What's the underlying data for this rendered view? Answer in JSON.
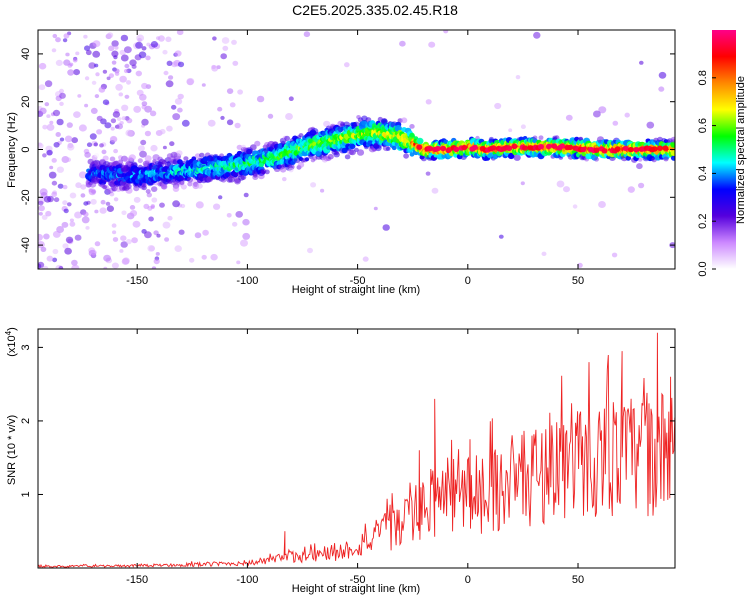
{
  "title": "C2E5.2025.335.02.45.R18",
  "chart_data": [
    {
      "type": "heatmap",
      "xlabel": "Height of straight line (km)",
      "ylabel": "Frequency (Hz)",
      "xlim": [
        -195,
        94
      ],
      "ylim": [
        -50,
        50
      ],
      "xticks": [
        -150,
        -100,
        -50,
        0,
        50
      ],
      "yticks": [
        -40,
        -20,
        0,
        20,
        40
      ],
      "colorbar": {
        "label": "Normalized spectral amplitude",
        "range": [
          0.0,
          1.0
        ],
        "ticks": [
          0.0,
          0.2,
          0.4,
          0.6,
          0.8
        ],
        "colors": [
          "#ffffff",
          "#cc88ff",
          "#5500dd",
          "#0000ff",
          "#00ffff",
          "#00ff00",
          "#ffff00",
          "#ff8800",
          "#ff0000",
          "#ff0088"
        ]
      },
      "ridge": {
        "x": [
          -170,
          -150,
          -130,
          -110,
          -100,
          -90,
          -80,
          -70,
          -60,
          -50,
          -45,
          -40,
          -30,
          -25,
          -20,
          -10,
          0,
          10,
          20,
          40,
          60,
          80,
          94
        ],
        "y": [
          -10,
          -11,
          -9,
          -7,
          -6,
          -4,
          -1,
          2,
          4,
          6,
          7,
          7,
          5,
          3,
          0,
          0,
          1,
          0,
          1,
          1,
          0,
          0,
          0
        ]
      }
    },
    {
      "type": "line",
      "xlabel": "Height of straight line (km)",
      "ylabel": "SNR (10 * v/v)",
      "multiplier": "(x10",
      "multiplier_exp": "4",
      "multiplier_close": ")",
      "xlim": [
        -195,
        94
      ],
      "ylim": [
        0,
        3.25
      ],
      "xticks": [
        -150,
        -100,
        -50,
        0,
        50
      ],
      "yticks": [
        1,
        2,
        3
      ],
      "color": "#ee2222",
      "envelope": {
        "x": [
          -195,
          -150,
          -120,
          -100,
          -90,
          -80,
          -70,
          -60,
          -50,
          -40,
          -30,
          -20,
          -10,
          0,
          10,
          20,
          30,
          40,
          50,
          60,
          70,
          80,
          94
        ],
        "y": [
          0.02,
          0.03,
          0.05,
          0.07,
          0.1,
          0.15,
          0.18,
          0.2,
          0.3,
          0.45,
          0.6,
          0.8,
          1.0,
          1.0,
          1.05,
          1.15,
          1.25,
          1.4,
          1.45,
          1.5,
          1.5,
          1.55,
          1.55
        ]
      },
      "peaks": [
        {
          "x": -83,
          "y": 0.5
        },
        {
          "x": -22,
          "y": 1.6
        },
        {
          "x": -15,
          "y": 2.3
        },
        {
          "x": 1,
          "y": 1.75
        },
        {
          "x": 55,
          "y": 2.8
        },
        {
          "x": 70,
          "y": 2.95
        },
        {
          "x": 86,
          "y": 3.2
        },
        {
          "x": 92,
          "y": 2.6
        }
      ]
    }
  ]
}
